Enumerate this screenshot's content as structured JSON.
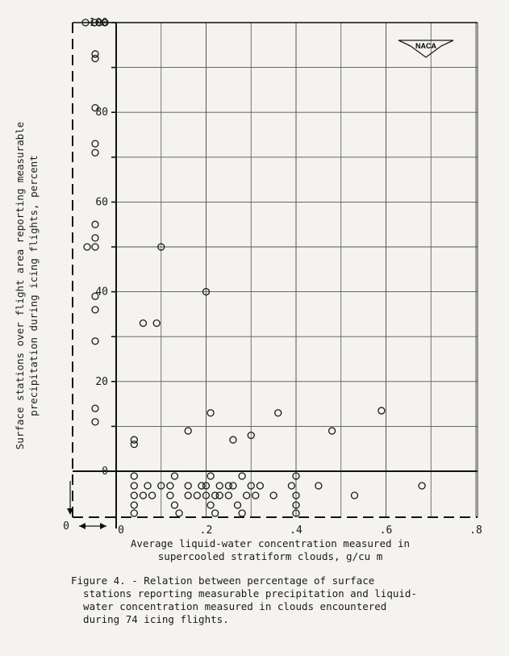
{
  "chart_data": {
    "type": "scatter",
    "xlabel_line1": "Average liquid-water concentration measured in",
    "xlabel_line2": "supercooled stratiform clouds, g/cu m",
    "ylabel_line1": "Surface stations over flight area reporting measurable",
    "ylabel_line2": "precipitation during icing flights, percent",
    "x_ticks": [
      {
        "value": 0,
        "label": "0"
      },
      {
        "value": 0.2,
        "label": ".2"
      },
      {
        "value": 0.4,
        "label": ".4"
      },
      {
        "value": 0.6,
        "label": ".6"
      },
      {
        "value": 0.8,
        "label": ".8"
      }
    ],
    "y_ticks": [
      {
        "value": 0,
        "label": "0"
      },
      {
        "value": 20,
        "label": "20"
      },
      {
        "value": 40,
        "label": "40"
      },
      {
        "value": 60,
        "label": "60"
      },
      {
        "value": 80,
        "label": "80"
      },
      {
        "value": 100,
        "label": "100"
      }
    ],
    "xlim": [
      0,
      0.8
    ],
    "ylim": [
      0,
      100
    ],
    "grid": true,
    "unknown_x_marker": "0",
    "logo_text": "NACA",
    "points_unknown_x": [
      {
        "x": "unknown",
        "y": 100
      },
      {
        "x": "unknown",
        "y": 100
      },
      {
        "x": "unknown",
        "y": 100
      },
      {
        "x": "unknown",
        "y": 100
      },
      {
        "x": "unknown",
        "y": 93
      },
      {
        "x": "unknown",
        "y": 92
      },
      {
        "x": "unknown",
        "y": 81
      },
      {
        "x": "unknown",
        "y": 73
      },
      {
        "x": "unknown",
        "y": 71
      },
      {
        "x": "unknown",
        "y": 55
      },
      {
        "x": "unknown",
        "y": 52
      },
      {
        "x": "unknown",
        "y": 50
      },
      {
        "x": "unknown",
        "y": 50
      },
      {
        "x": "unknown",
        "y": 39
      },
      {
        "x": "unknown",
        "y": 36
      },
      {
        "x": "unknown",
        "y": 29
      },
      {
        "x": "unknown",
        "y": 14
      },
      {
        "x": "unknown",
        "y": 11
      }
    ],
    "points": [
      {
        "x": 0.1,
        "y": 50
      },
      {
        "x": 0.2,
        "y": 40
      },
      {
        "x": 0.06,
        "y": 33
      },
      {
        "x": 0.09,
        "y": 33
      },
      {
        "x": 0.21,
        "y": 13
      },
      {
        "x": 0.36,
        "y": 13
      },
      {
        "x": 0.59,
        "y": 13.5
      },
      {
        "x": 0.16,
        "y": 9
      },
      {
        "x": 0.48,
        "y": 9
      },
      {
        "x": 0.3,
        "y": 8
      },
      {
        "x": 0.26,
        "y": 7
      },
      {
        "x": 0.04,
        "y": 7
      },
      {
        "x": 0.04,
        "y": 6
      }
    ],
    "points_zero": [
      {
        "x": 0.04
      },
      {
        "x": 0.04
      },
      {
        "x": 0.04
      },
      {
        "x": 0.04
      },
      {
        "x": 0.04
      },
      {
        "x": 0.06
      },
      {
        "x": 0.07
      },
      {
        "x": 0.08
      },
      {
        "x": 0.1
      },
      {
        "x": 0.12
      },
      {
        "x": 0.12
      },
      {
        "x": 0.13
      },
      {
        "x": 0.13
      },
      {
        "x": 0.14
      },
      {
        "x": 0.16
      },
      {
        "x": 0.16
      },
      {
        "x": 0.18
      },
      {
        "x": 0.19
      },
      {
        "x": 0.2
      },
      {
        "x": 0.2
      },
      {
        "x": 0.21
      },
      {
        "x": 0.21
      },
      {
        "x": 0.22
      },
      {
        "x": 0.22
      },
      {
        "x": 0.23
      },
      {
        "x": 0.23
      },
      {
        "x": 0.25
      },
      {
        "x": 0.25
      },
      {
        "x": 0.26
      },
      {
        "x": 0.27
      },
      {
        "x": 0.28
      },
      {
        "x": 0.28
      },
      {
        "x": 0.29
      },
      {
        "x": 0.3
      },
      {
        "x": 0.31
      },
      {
        "x": 0.32
      },
      {
        "x": 0.35
      },
      {
        "x": 0.39
      },
      {
        "x": 0.4
      },
      {
        "x": 0.4
      },
      {
        "x": 0.4
      },
      {
        "x": 0.4
      },
      {
        "x": 0.45
      },
      {
        "x": 0.53
      },
      {
        "x": 0.68
      }
    ]
  },
  "caption": {
    "line1": "Figure 4. - Relation between percentage of surface",
    "line2": "  stations reporting measurable precipitation and liquid-",
    "line3": "  water concentration measured in clouds encountered",
    "line4": "  during 74 icing flights."
  }
}
